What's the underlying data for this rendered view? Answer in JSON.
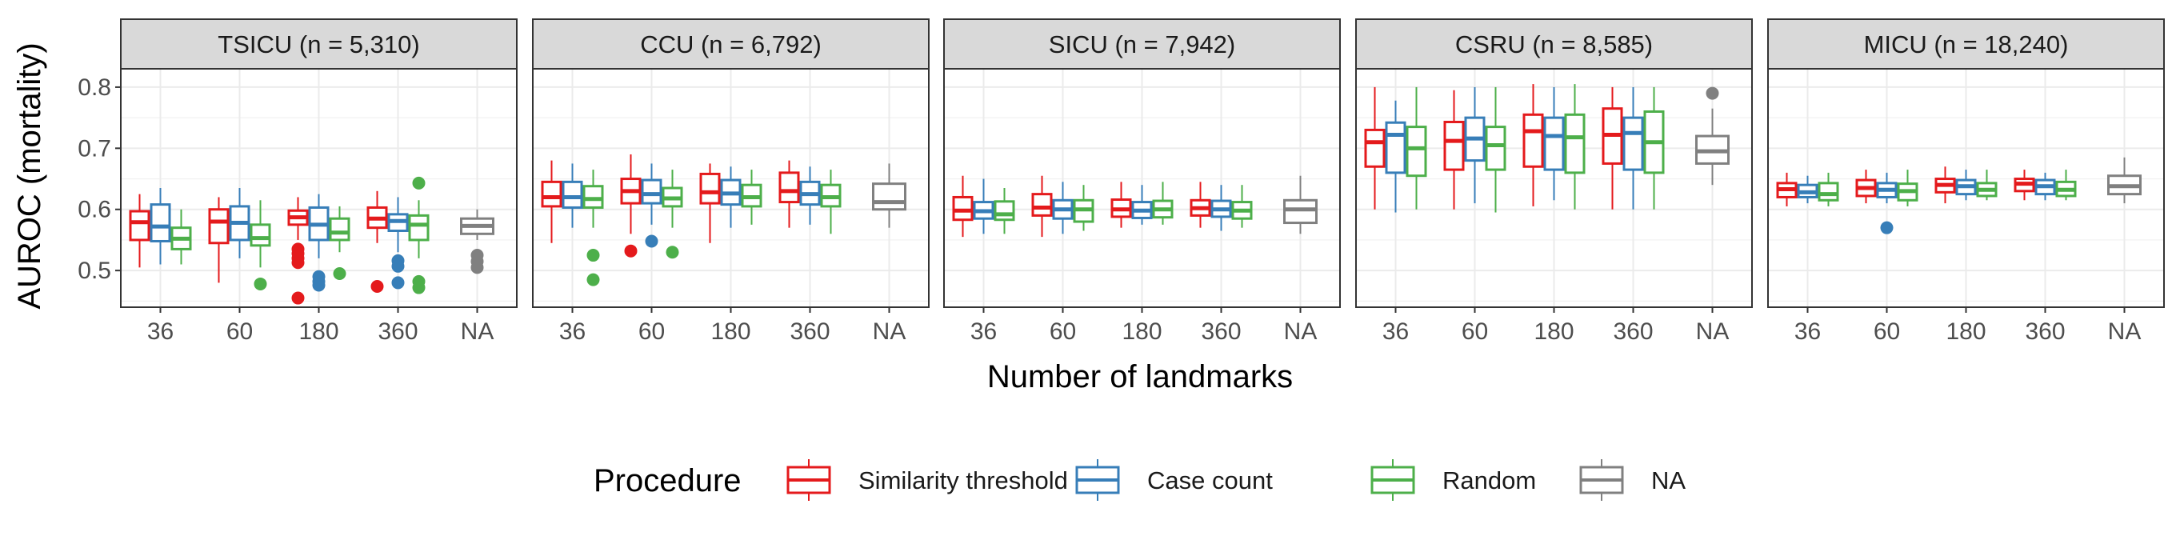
{
  "chart_data": {
    "type": "boxplot",
    "facet_by": "ICU",
    "ylabel": "AUROC (mortality)",
    "xlabel": "Number of landmarks",
    "x_categories": [
      "36",
      "60",
      "180",
      "360",
      "NA"
    ],
    "ylim": [
      0.44,
      0.83
    ],
    "y_ticks": [
      0.5,
      0.6,
      0.7,
      0.8
    ],
    "grid": true,
    "legend": {
      "title": "Procedure",
      "position": "bottom",
      "entries": [
        {
          "label": "Similarity threshold",
          "color": "#E41A1C"
        },
        {
          "label": "Case count",
          "color": "#377EB8"
        },
        {
          "label": "Random",
          "color": "#4DAF4A"
        },
        {
          "label": "NA",
          "color": "#808080"
        }
      ]
    },
    "panels": [
      {
        "title": "TSICU (n =  5,310)",
        "boxes": [
          {
            "x": "36",
            "group": "Similarity threshold",
            "min": 0.505,
            "q1": 0.55,
            "median": 0.579,
            "q3": 0.597,
            "max": 0.625,
            "outliers": []
          },
          {
            "x": "36",
            "group": "Case count",
            "min": 0.51,
            "q1": 0.548,
            "median": 0.572,
            "q3": 0.608,
            "max": 0.635,
            "outliers": []
          },
          {
            "x": "36",
            "group": "Random",
            "min": 0.51,
            "q1": 0.535,
            "median": 0.552,
            "q3": 0.57,
            "max": 0.6,
            "outliers": []
          },
          {
            "x": "60",
            "group": "Similarity threshold",
            "min": 0.48,
            "q1": 0.545,
            "median": 0.58,
            "q3": 0.6,
            "max": 0.62,
            "outliers": []
          },
          {
            "x": "60",
            "group": "Case count",
            "min": 0.52,
            "q1": 0.55,
            "median": 0.578,
            "q3": 0.605,
            "max": 0.635,
            "outliers": []
          },
          {
            "x": "60",
            "group": "Random",
            "min": 0.505,
            "q1": 0.541,
            "median": 0.553,
            "q3": 0.575,
            "max": 0.615,
            "outliers": [
              0.478
            ]
          },
          {
            "x": "180",
            "group": "Similarity threshold",
            "min": 0.55,
            "q1": 0.575,
            "median": 0.587,
            "q3": 0.598,
            "max": 0.62,
            "outliers": [
              0.535,
              0.528,
              0.52,
              0.513,
              0.455
            ]
          },
          {
            "x": "180",
            "group": "Case count",
            "min": 0.52,
            "q1": 0.55,
            "median": 0.575,
            "q3": 0.603,
            "max": 0.625,
            "outliers": [
              0.49,
              0.482,
              0.476
            ]
          },
          {
            "x": "180",
            "group": "Random",
            "min": 0.53,
            "q1": 0.55,
            "median": 0.562,
            "q3": 0.585,
            "max": 0.605,
            "outliers": [
              0.495
            ]
          },
          {
            "x": "360",
            "group": "Similarity threshold",
            "min": 0.545,
            "q1": 0.57,
            "median": 0.585,
            "q3": 0.603,
            "max": 0.63,
            "outliers": [
              0.474
            ]
          },
          {
            "x": "360",
            "group": "Case count",
            "min": 0.53,
            "q1": 0.565,
            "median": 0.581,
            "q3": 0.592,
            "max": 0.62,
            "outliers": [
              0.516,
              0.507,
              0.48
            ]
          },
          {
            "x": "360",
            "group": "Random",
            "min": 0.52,
            "q1": 0.55,
            "median": 0.575,
            "q3": 0.59,
            "max": 0.615,
            "outliers": [
              0.643,
              0.482,
              0.472
            ]
          },
          {
            "x": "NA",
            "group": "NA",
            "min": 0.55,
            "q1": 0.56,
            "median": 0.573,
            "q3": 0.585,
            "max": 0.6,
            "outliers": [
              0.525,
              0.515,
              0.505
            ]
          }
        ]
      },
      {
        "title": "CCU (n =  6,792)",
        "boxes": [
          {
            "x": "36",
            "group": "Similarity threshold",
            "min": 0.545,
            "q1": 0.605,
            "median": 0.62,
            "q3": 0.645,
            "max": 0.68,
            "outliers": []
          },
          {
            "x": "36",
            "group": "Case count",
            "min": 0.57,
            "q1": 0.603,
            "median": 0.62,
            "q3": 0.645,
            "max": 0.675,
            "outliers": []
          },
          {
            "x": "36",
            "group": "Random",
            "min": 0.57,
            "q1": 0.603,
            "median": 0.617,
            "q3": 0.638,
            "max": 0.665,
            "outliers": [
              0.525,
              0.485
            ]
          },
          {
            "x": "60",
            "group": "Similarity threshold",
            "min": 0.56,
            "q1": 0.61,
            "median": 0.63,
            "q3": 0.65,
            "max": 0.69,
            "outliers": [
              0.532
            ]
          },
          {
            "x": "60",
            "group": "Case count",
            "min": 0.575,
            "q1": 0.61,
            "median": 0.625,
            "q3": 0.648,
            "max": 0.675,
            "outliers": [
              0.548
            ]
          },
          {
            "x": "60",
            "group": "Random",
            "min": 0.57,
            "q1": 0.605,
            "median": 0.618,
            "q3": 0.635,
            "max": 0.665,
            "outliers": [
              0.53
            ]
          },
          {
            "x": "180",
            "group": "Similarity threshold",
            "min": 0.545,
            "q1": 0.61,
            "median": 0.628,
            "q3": 0.658,
            "max": 0.675,
            "outliers": []
          },
          {
            "x": "180",
            "group": "Case count",
            "min": 0.57,
            "q1": 0.608,
            "median": 0.626,
            "q3": 0.648,
            "max": 0.67,
            "outliers": []
          },
          {
            "x": "180",
            "group": "Random",
            "min": 0.575,
            "q1": 0.605,
            "median": 0.62,
            "q3": 0.64,
            "max": 0.665,
            "outliers": []
          },
          {
            "x": "360",
            "group": "Similarity threshold",
            "min": 0.57,
            "q1": 0.612,
            "median": 0.63,
            "q3": 0.66,
            "max": 0.68,
            "outliers": []
          },
          {
            "x": "360",
            "group": "Case count",
            "min": 0.575,
            "q1": 0.608,
            "median": 0.625,
            "q3": 0.645,
            "max": 0.67,
            "outliers": []
          },
          {
            "x": "360",
            "group": "Random",
            "min": 0.56,
            "q1": 0.605,
            "median": 0.62,
            "q3": 0.64,
            "max": 0.665,
            "outliers": []
          },
          {
            "x": "NA",
            "group": "NA",
            "min": 0.57,
            "q1": 0.6,
            "median": 0.612,
            "q3": 0.642,
            "max": 0.675,
            "outliers": []
          }
        ]
      },
      {
        "title": "SICU (n =  7,942)",
        "boxes": [
          {
            "x": "36",
            "group": "Similarity threshold",
            "min": 0.555,
            "q1": 0.583,
            "median": 0.598,
            "q3": 0.62,
            "max": 0.655,
            "outliers": []
          },
          {
            "x": "36",
            "group": "Case count",
            "min": 0.56,
            "q1": 0.585,
            "median": 0.597,
            "q3": 0.612,
            "max": 0.65,
            "outliers": []
          },
          {
            "x": "36",
            "group": "Random",
            "min": 0.56,
            "q1": 0.583,
            "median": 0.592,
            "q3": 0.613,
            "max": 0.635,
            "outliers": []
          },
          {
            "x": "60",
            "group": "Similarity threshold",
            "min": 0.555,
            "q1": 0.59,
            "median": 0.603,
            "q3": 0.625,
            "max": 0.655,
            "outliers": []
          },
          {
            "x": "60",
            "group": "Case count",
            "min": 0.56,
            "q1": 0.585,
            "median": 0.6,
            "q3": 0.615,
            "max": 0.645,
            "outliers": []
          },
          {
            "x": "60",
            "group": "Random",
            "min": 0.565,
            "q1": 0.58,
            "median": 0.6,
            "q3": 0.615,
            "max": 0.64,
            "outliers": []
          },
          {
            "x": "180",
            "group": "Similarity threshold",
            "min": 0.57,
            "q1": 0.588,
            "median": 0.6,
            "q3": 0.616,
            "max": 0.645,
            "outliers": []
          },
          {
            "x": "180",
            "group": "Case count",
            "min": 0.575,
            "q1": 0.586,
            "median": 0.598,
            "q3": 0.612,
            "max": 0.64,
            "outliers": []
          },
          {
            "x": "180",
            "group": "Random",
            "min": 0.575,
            "q1": 0.587,
            "median": 0.6,
            "q3": 0.614,
            "max": 0.645,
            "outliers": []
          },
          {
            "x": "360",
            "group": "Similarity threshold",
            "min": 0.57,
            "q1": 0.59,
            "median": 0.602,
            "q3": 0.615,
            "max": 0.645,
            "outliers": []
          },
          {
            "x": "360",
            "group": "Case count",
            "min": 0.565,
            "q1": 0.588,
            "median": 0.6,
            "q3": 0.614,
            "max": 0.64,
            "outliers": []
          },
          {
            "x": "360",
            "group": "Random",
            "min": 0.57,
            "q1": 0.585,
            "median": 0.598,
            "q3": 0.612,
            "max": 0.64,
            "outliers": []
          },
          {
            "x": "NA",
            "group": "NA",
            "min": 0.56,
            "q1": 0.578,
            "median": 0.6,
            "q3": 0.615,
            "max": 0.655,
            "outliers": []
          }
        ]
      },
      {
        "title": "CSRU (n =  8,585)",
        "boxes": [
          {
            "x": "36",
            "group": "Similarity threshold",
            "min": 0.6,
            "q1": 0.67,
            "median": 0.71,
            "q3": 0.73,
            "max": 0.8,
            "outliers": []
          },
          {
            "x": "36",
            "group": "Case count",
            "min": 0.595,
            "q1": 0.66,
            "median": 0.722,
            "q3": 0.742,
            "max": 0.778,
            "outliers": []
          },
          {
            "x": "36",
            "group": "Random",
            "min": 0.6,
            "q1": 0.655,
            "median": 0.7,
            "q3": 0.735,
            "max": 0.8,
            "outliers": []
          },
          {
            "x": "60",
            "group": "Similarity threshold",
            "min": 0.6,
            "q1": 0.665,
            "median": 0.712,
            "q3": 0.743,
            "max": 0.795,
            "outliers": []
          },
          {
            "x": "60",
            "group": "Case count",
            "min": 0.61,
            "q1": 0.68,
            "median": 0.716,
            "q3": 0.75,
            "max": 0.8,
            "outliers": []
          },
          {
            "x": "60",
            "group": "Random",
            "min": 0.595,
            "q1": 0.665,
            "median": 0.705,
            "q3": 0.735,
            "max": 0.8,
            "outliers": []
          },
          {
            "x": "180",
            "group": "Similarity threshold",
            "min": 0.605,
            "q1": 0.67,
            "median": 0.728,
            "q3": 0.755,
            "max": 0.805,
            "outliers": []
          },
          {
            "x": "180",
            "group": "Case count",
            "min": 0.615,
            "q1": 0.665,
            "median": 0.72,
            "q3": 0.75,
            "max": 0.8,
            "outliers": []
          },
          {
            "x": "180",
            "group": "Random",
            "min": 0.6,
            "q1": 0.66,
            "median": 0.718,
            "q3": 0.755,
            "max": 0.805,
            "outliers": []
          },
          {
            "x": "360",
            "group": "Similarity threshold",
            "min": 0.6,
            "q1": 0.675,
            "median": 0.722,
            "q3": 0.765,
            "max": 0.8,
            "outliers": []
          },
          {
            "x": "360",
            "group": "Case count",
            "min": 0.6,
            "q1": 0.665,
            "median": 0.725,
            "q3": 0.75,
            "max": 0.8,
            "outliers": []
          },
          {
            "x": "360",
            "group": "Random",
            "min": 0.6,
            "q1": 0.66,
            "median": 0.71,
            "q3": 0.76,
            "max": 0.8,
            "outliers": []
          },
          {
            "x": "NA",
            "group": "NA",
            "min": 0.64,
            "q1": 0.675,
            "median": 0.695,
            "q3": 0.72,
            "max": 0.765,
            "outliers": [
              0.79
            ]
          }
        ]
      },
      {
        "title": "MICU (n = 18,240)",
        "boxes": [
          {
            "x": "36",
            "group": "Similarity threshold",
            "min": 0.605,
            "q1": 0.62,
            "median": 0.633,
            "q3": 0.643,
            "max": 0.66,
            "outliers": []
          },
          {
            "x": "36",
            "group": "Case count",
            "min": 0.61,
            "q1": 0.62,
            "median": 0.628,
            "q3": 0.64,
            "max": 0.655,
            "outliers": []
          },
          {
            "x": "36",
            "group": "Random",
            "min": 0.605,
            "q1": 0.615,
            "median": 0.625,
            "q3": 0.643,
            "max": 0.66,
            "outliers": []
          },
          {
            "x": "60",
            "group": "Similarity threshold",
            "min": 0.61,
            "q1": 0.622,
            "median": 0.635,
            "q3": 0.648,
            "max": 0.665,
            "outliers": []
          },
          {
            "x": "60",
            "group": "Case count",
            "min": 0.61,
            "q1": 0.62,
            "median": 0.632,
            "q3": 0.643,
            "max": 0.66,
            "outliers": [
              0.57
            ]
          },
          {
            "x": "60",
            "group": "Random",
            "min": 0.605,
            "q1": 0.615,
            "median": 0.63,
            "q3": 0.642,
            "max": 0.665,
            "outliers": []
          },
          {
            "x": "180",
            "group": "Similarity threshold",
            "min": 0.61,
            "q1": 0.628,
            "median": 0.64,
            "q3": 0.65,
            "max": 0.67,
            "outliers": []
          },
          {
            "x": "180",
            "group": "Case count",
            "min": 0.615,
            "q1": 0.625,
            "median": 0.638,
            "q3": 0.648,
            "max": 0.665,
            "outliers": []
          },
          {
            "x": "180",
            "group": "Random",
            "min": 0.615,
            "q1": 0.622,
            "median": 0.632,
            "q3": 0.643,
            "max": 0.665,
            "outliers": []
          },
          {
            "x": "360",
            "group": "Similarity threshold",
            "min": 0.615,
            "q1": 0.63,
            "median": 0.642,
            "q3": 0.65,
            "max": 0.665,
            "outliers": []
          },
          {
            "x": "360",
            "group": "Case count",
            "min": 0.615,
            "q1": 0.625,
            "median": 0.638,
            "q3": 0.648,
            "max": 0.66,
            "outliers": []
          },
          {
            "x": "360",
            "group": "Random",
            "min": 0.615,
            "q1": 0.622,
            "median": 0.632,
            "q3": 0.645,
            "max": 0.665,
            "outliers": []
          },
          {
            "x": "NA",
            "group": "NA",
            "min": 0.61,
            "q1": 0.625,
            "median": 0.638,
            "q3": 0.655,
            "max": 0.685,
            "outliers": []
          }
        ]
      }
    ]
  }
}
